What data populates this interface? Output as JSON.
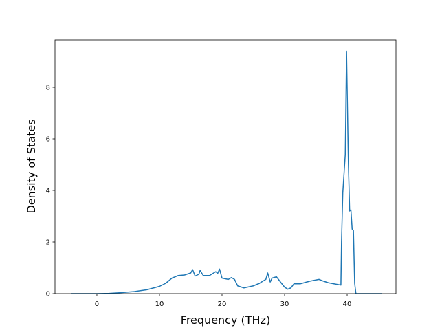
{
  "chart_data": {
    "type": "line",
    "x_label": "Frequency (THz)",
    "y_label": "Density of States",
    "x": [
      -4.1,
      0,
      2,
      4,
      6,
      8,
      10,
      11,
      12,
      13,
      14,
      15,
      15.3,
      15.7,
      16.3,
      16.5,
      17,
      18,
      19,
      19.3,
      19.6,
      20,
      21,
      21.5,
      22,
      22.5,
      23.5,
      25,
      26,
      26.5,
      27,
      27.3,
      27.7,
      28,
      28.7,
      29.5,
      30,
      30.5,
      31,
      31.5,
      32.5,
      34,
      35.5,
      36,
      37,
      39,
      39.1,
      39.3,
      39.7,
      39.9,
      40.2,
      40.4,
      40.6,
      40.8,
      41,
      41.2,
      41.4,
      45.5
    ],
    "series": [
      {
        "name": "DOS",
        "color": "#1f77b4",
        "values": [
          0,
          0,
          0.01,
          0.04,
          0.08,
          0.15,
          0.28,
          0.4,
          0.6,
          0.7,
          0.72,
          0.8,
          0.93,
          0.68,
          0.75,
          0.9,
          0.7,
          0.7,
          0.85,
          0.78,
          0.95,
          0.6,
          0.55,
          0.62,
          0.55,
          0.3,
          0.22,
          0.3,
          0.4,
          0.48,
          0.55,
          0.8,
          0.45,
          0.6,
          0.65,
          0.4,
          0.25,
          0.17,
          0.22,
          0.38,
          0.38,
          0.48,
          0.55,
          0.5,
          0.42,
          0.33,
          2.0,
          3.9,
          5.4,
          9.4,
          5.0,
          3.2,
          3.25,
          2.5,
          2.45,
          0.4,
          0,
          0
        ]
      }
    ],
    "xlim": [
      -6.7,
      47.8
    ],
    "xticks": [
      0,
      10,
      20,
      30,
      40
    ],
    "ylim": [
      0,
      9.84
    ],
    "yticks": [
      0,
      2,
      4,
      6,
      8
    ]
  }
}
